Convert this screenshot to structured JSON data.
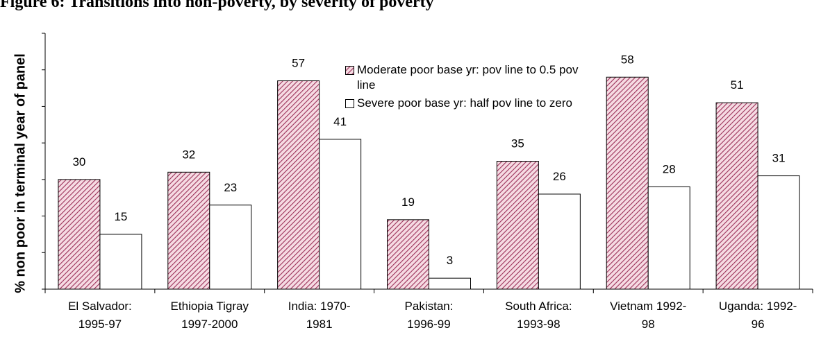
{
  "chart_data": {
    "type": "bar",
    "title": "Figure 6: Transitions into non-poverty, by severity of poverty",
    "y_label": "% non poor in terminal year of panel",
    "categories": [
      [
        "El Salvador:",
        "1995-97"
      ],
      [
        "Ethiopia Tigray",
        "1997-2000"
      ],
      [
        "India: 1970-",
        "1981"
      ],
      [
        "Pakistan:",
        "1996-99"
      ],
      [
        "South Africa:",
        "1993-98"
      ],
      [
        "Vietnam 1992-",
        "98"
      ],
      [
        "Uganda: 1992-",
        "96"
      ]
    ],
    "series": [
      {
        "name": "Moderate poor base yr: pov line to 0.5 pov line",
        "color": "#9b3058",
        "pattern": "hatch",
        "values": [
          30,
          32,
          57,
          19,
          35,
          58,
          51
        ]
      },
      {
        "name": "Severe poor base yr: half pov line to zero",
        "color": "#ffffff",
        "pattern": "solid",
        "values": [
          15,
          23,
          41,
          3,
          26,
          28,
          31
        ]
      }
    ],
    "ylim": [
      0,
      70
    ],
    "yticks": [
      0,
      10,
      20,
      30,
      40,
      50,
      60,
      70
    ],
    "grid": false
  }
}
